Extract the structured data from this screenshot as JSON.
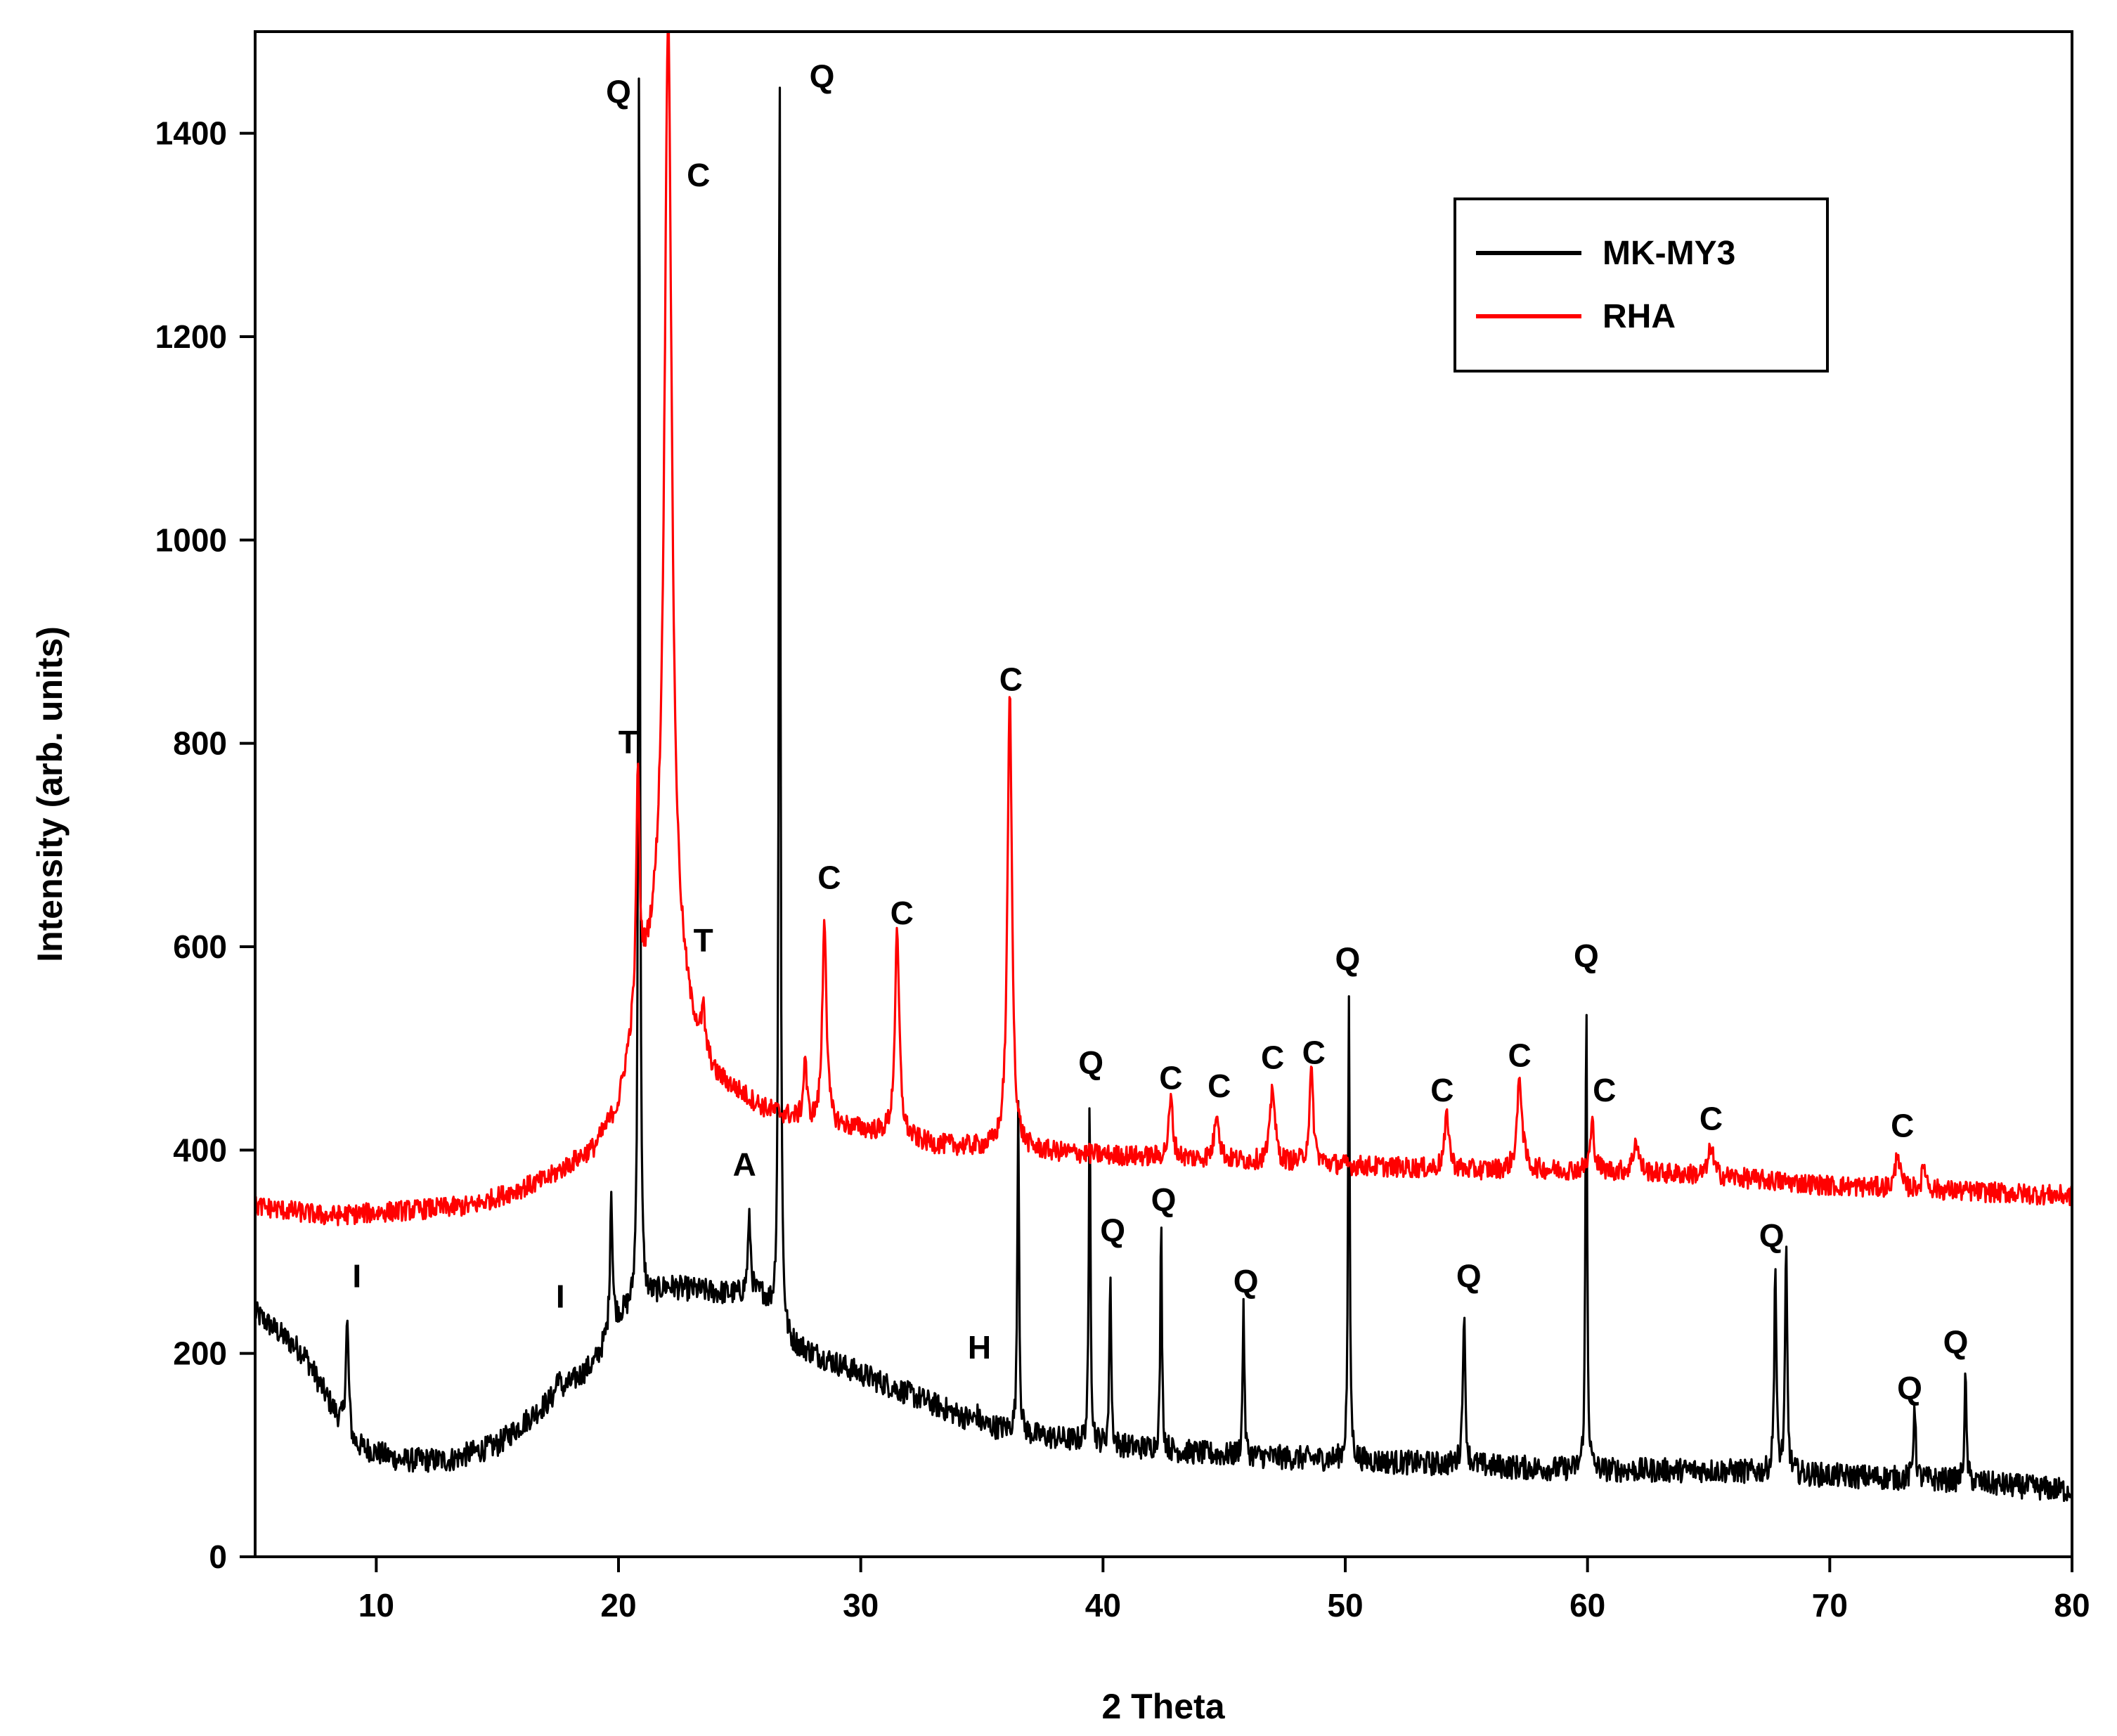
{
  "chart_data": {
    "type": "line",
    "xlabel": "2 Theta",
    "ylabel": "Intensity (arb. units)",
    "xlim": [
      5,
      80
    ],
    "ylim": [
      0,
      1500
    ],
    "xticks": [
      10,
      20,
      30,
      40,
      50,
      60,
      70,
      80
    ],
    "yticks": [
      0,
      200,
      400,
      600,
      800,
      1000,
      1200,
      1400
    ],
    "legend_position": "top-right",
    "series": [
      {
        "name": "MK-MY3",
        "color": "#000000",
        "baseline": [
          [
            5,
            240
          ],
          [
            7,
            200
          ],
          [
            9,
            110
          ],
          [
            11,
            95
          ],
          [
            13,
            95
          ],
          [
            15,
            110
          ],
          [
            17,
            150
          ],
          [
            19,
            190
          ],
          [
            20,
            235
          ],
          [
            22,
            265
          ],
          [
            24,
            260
          ],
          [
            26,
            255
          ],
          [
            27,
            210
          ],
          [
            29,
            190
          ],
          [
            31,
            170
          ],
          [
            33,
            150
          ],
          [
            35,
            130
          ],
          [
            37,
            120
          ],
          [
            40,
            110
          ],
          [
            45,
            100
          ],
          [
            50,
            95
          ],
          [
            55,
            90
          ],
          [
            60,
            85
          ],
          [
            65,
            85
          ],
          [
            70,
            80
          ],
          [
            75,
            75
          ],
          [
            80,
            65
          ]
        ],
        "noise": 12,
        "peaks": [
          [
            8.8,
            230,
            0.15
          ],
          [
            17.5,
            180,
            0.15
          ],
          [
            19.7,
            360,
            0.12
          ],
          [
            20.85,
            1520,
            0.08
          ],
          [
            25.4,
            330,
            0.15
          ],
          [
            26.65,
            1520,
            0.08
          ],
          [
            34.8,
            140,
            0.15
          ],
          [
            36.5,
            460,
            0.08
          ],
          [
            39.45,
            460,
            0.08
          ],
          [
            40.3,
            290,
            0.08
          ],
          [
            42.4,
            330,
            0.08
          ],
          [
            45.8,
            255,
            0.08
          ],
          [
            50.15,
            555,
            0.08
          ],
          [
            54.9,
            240,
            0.12
          ],
          [
            59.95,
            560,
            0.08
          ],
          [
            67.75,
            290,
            0.1
          ],
          [
            68.2,
            305,
            0.1
          ],
          [
            73.5,
            155,
            0.1
          ],
          [
            75.6,
            175,
            0.1
          ]
        ]
      },
      {
        "name": "RHA",
        "color": "#ff0000",
        "baseline": [
          [
            5,
            345
          ],
          [
            8,
            335
          ],
          [
            11,
            340
          ],
          [
            14,
            345
          ],
          [
            17,
            370
          ],
          [
            19,
            400
          ],
          [
            20,
            440
          ],
          [
            21,
            560
          ],
          [
            22,
            620
          ],
          [
            23,
            520
          ],
          [
            24,
            470
          ],
          [
            26,
            440
          ],
          [
            28,
            425
          ],
          [
            30,
            420
          ],
          [
            33,
            405
          ],
          [
            36,
            400
          ],
          [
            40,
            395
          ],
          [
            45,
            390
          ],
          [
            50,
            385
          ],
          [
            55,
            380
          ],
          [
            60,
            380
          ],
          [
            65,
            375
          ],
          [
            70,
            365
          ],
          [
            75,
            360
          ],
          [
            80,
            355
          ]
        ],
        "noise": 10,
        "peaks": [
          [
            20.8,
            770,
            0.15
          ],
          [
            22.05,
            1520,
            0.35
          ],
          [
            23.5,
            530,
            0.15
          ],
          [
            27.7,
            490,
            0.15
          ],
          [
            28.5,
            630,
            0.2
          ],
          [
            31.5,
            610,
            0.22
          ],
          [
            36.15,
            850,
            0.22
          ],
          [
            42.8,
            450,
            0.2
          ],
          [
            44.7,
            440,
            0.22
          ],
          [
            47.0,
            465,
            0.22
          ],
          [
            48.6,
            475,
            0.2
          ],
          [
            54.2,
            435,
            0.22
          ],
          [
            57.2,
            470,
            0.25
          ],
          [
            60.2,
            425,
            0.2
          ],
          [
            62.0,
            410,
            0.25
          ],
          [
            65.1,
            405,
            0.22
          ],
          [
            72.8,
            400,
            0.2
          ],
          [
            73.9,
            385,
            0.2
          ]
        ]
      }
    ],
    "annotations": [
      {
        "text": "Q",
        "x": 20.0,
        "y": 1430
      },
      {
        "text": "Q",
        "x": 28.4,
        "y": 1445
      },
      {
        "text": "C",
        "x": 23.3,
        "y": 1348
      },
      {
        "text": "T",
        "x": 20.4,
        "y": 790
      },
      {
        "text": "T",
        "x": 23.5,
        "y": 595
      },
      {
        "text": "C",
        "x": 36.2,
        "y": 852
      },
      {
        "text": "C",
        "x": 28.7,
        "y": 657
      },
      {
        "text": "C",
        "x": 31.7,
        "y": 622
      },
      {
        "text": "A",
        "x": 25.2,
        "y": 375
      },
      {
        "text": "I",
        "x": 9.2,
        "y": 265
      },
      {
        "text": "I",
        "x": 17.6,
        "y": 245
      },
      {
        "text": "H",
        "x": 34.9,
        "y": 195
      },
      {
        "text": "Q",
        "x": 39.5,
        "y": 475
      },
      {
        "text": "Q",
        "x": 40.4,
        "y": 310
      },
      {
        "text": "Q",
        "x": 42.5,
        "y": 340
      },
      {
        "text": "Q",
        "x": 45.9,
        "y": 260
      },
      {
        "text": "Q",
        "x": 55.1,
        "y": 265
      },
      {
        "text": "Q",
        "x": 50.1,
        "y": 577
      },
      {
        "text": "Q",
        "x": 59.95,
        "y": 580
      },
      {
        "text": "Q",
        "x": 67.6,
        "y": 305
      },
      {
        "text": "Q",
        "x": 73.3,
        "y": 155
      },
      {
        "text": "Q",
        "x": 75.2,
        "y": 200
      },
      {
        "text": "C",
        "x": 42.8,
        "y": 460
      },
      {
        "text": "C",
        "x": 44.8,
        "y": 452
      },
      {
        "text": "C",
        "x": 47.0,
        "y": 480
      },
      {
        "text": "C",
        "x": 48.7,
        "y": 485
      },
      {
        "text": "C",
        "x": 54.0,
        "y": 448
      },
      {
        "text": "C",
        "x": 57.2,
        "y": 482
      },
      {
        "text": "C",
        "x": 60.7,
        "y": 448
      },
      {
        "text": "C",
        "x": 65.1,
        "y": 420
      },
      {
        "text": "C",
        "x": 73.0,
        "y": 413
      }
    ]
  }
}
